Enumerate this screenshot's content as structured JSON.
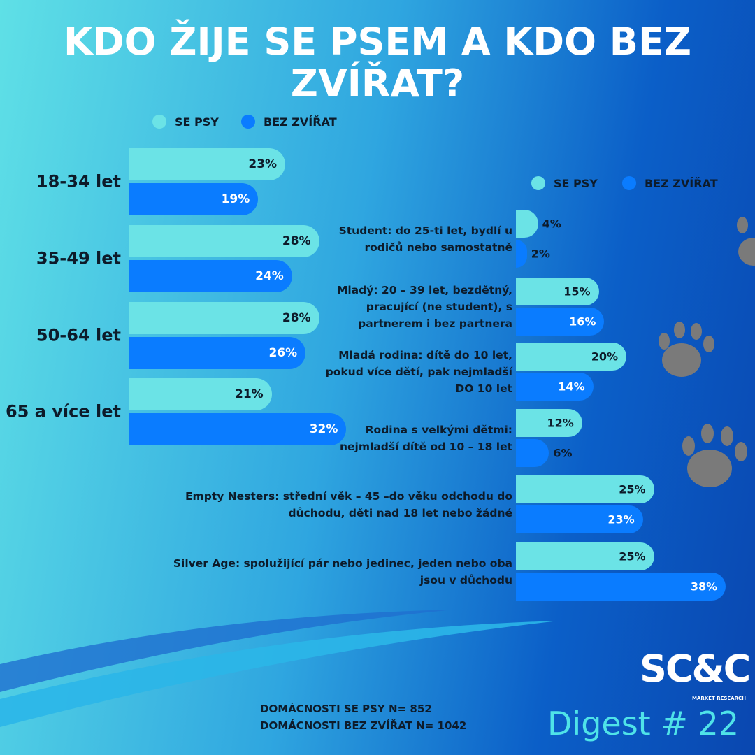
{
  "title": "KDO ŽIJE SE PSEM A KDO BEZ ZVÍŘAT?",
  "chart_data": [
    {
      "type": "bar",
      "orientation": "horizontal",
      "xlim": [
        0,
        40
      ],
      "categories": [
        "18-34 let",
        "35-49 let",
        "50-64 let",
        "65 a více let"
      ],
      "series": [
        {
          "name": "SE PSY",
          "color": "#6be3e6",
          "values": [
            23,
            28,
            28,
            21
          ],
          "value_labels": [
            "23%",
            "28%",
            "28%",
            "21%"
          ]
        },
        {
          "name": "BEZ ZVÍŘAT",
          "color": "#0a7cff",
          "values": [
            19,
            24,
            26,
            32
          ],
          "value_labels": [
            "19%",
            "24%",
            "26%",
            "32%"
          ]
        }
      ]
    },
    {
      "type": "bar",
      "orientation": "horizontal",
      "xlim": [
        0,
        40
      ],
      "categories": [
        "Student: do 25-ti let, bydlí u rodičů nebo samostatně",
        "Mladý: 20 – 39 let, bezdětný, pracující (ne student), s partnerem i bez partnera",
        "Mladá rodina: dítě do 10 let, pokud více dětí, pak nejmladší DO 10 let",
        "Rodina s velkými dětmi: nejmladší dítě od 10 – 18 let",
        "Empty Nesters: střední věk – 45 –do věku odchodu do důchodu, děti nad 18 let nebo žádné",
        "Silver Age: spolužijící pár nebo jedinec, jeden nebo oba jsou v důchodu"
      ],
      "series": [
        {
          "name": "SE PSY",
          "color": "#6be3e6",
          "values": [
            4,
            15,
            20,
            12,
            25,
            25
          ],
          "value_labels": [
            "4%",
            "15%",
            "20%",
            "12%",
            "25%",
            "25%"
          ]
        },
        {
          "name": "BEZ ZVÍŘAT",
          "color": "#0a7cff",
          "values": [
            2,
            16,
            14,
            6,
            23,
            38
          ],
          "value_labels": [
            "2%",
            "16%",
            "14%",
            "6%",
            "23%",
            "38%"
          ]
        }
      ]
    }
  ],
  "footer": [
    "DOMÁCNOSTI SE PSY N= 852",
    "DOMÁCNOSTI BEZ ZVÍŘAT N= 1042"
  ],
  "logo": {
    "name": "SC&C",
    "tagline": "MARKET RESEARCH"
  },
  "digest": "Digest # 22"
}
